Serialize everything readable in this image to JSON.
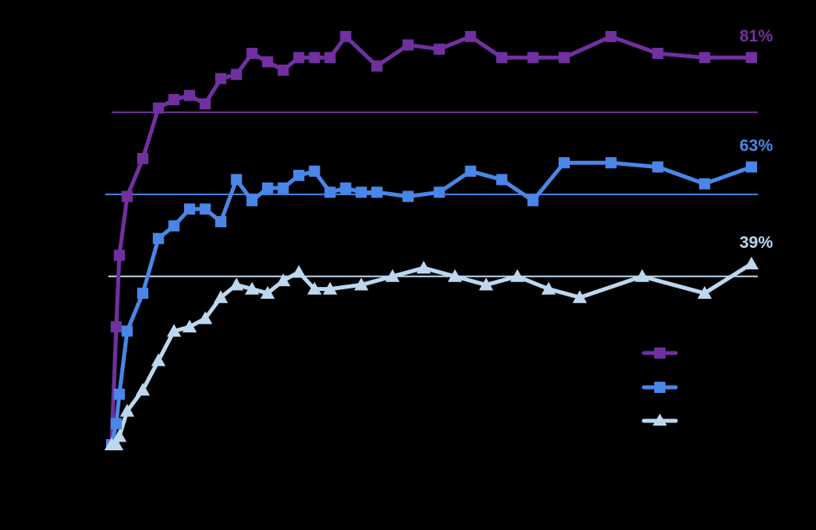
{
  "chart_data": {
    "type": "line",
    "background": "#000000",
    "title": "",
    "xlabel": "",
    "ylabel": "",
    "grid": false,
    "legend_position": "right",
    "x": [
      0,
      0.3,
      0.5,
      1,
      2,
      3,
      4,
      5,
      6,
      7,
      8,
      9,
      10,
      11,
      12,
      13,
      14,
      15,
      16,
      17,
      19,
      21,
      23,
      25,
      27,
      29,
      32,
      35,
      38,
      41
    ],
    "xlim": [
      0,
      41
    ],
    "ylim": [
      0,
      100
    ],
    "series": [
      {
        "color": "#7030A0",
        "marker": "square",
        "reference_value": 79,
        "end_label": "81%",
        "x": [
          0,
          0.3,
          0.5,
          1,
          2,
          3,
          4,
          5,
          6,
          7,
          8,
          9,
          10,
          11,
          12,
          13,
          14,
          15,
          17,
          19,
          21,
          23,
          25,
          27,
          29,
          32,
          35,
          38,
          41
        ],
        "values": [
          0,
          28,
          45,
          59,
          68,
          80,
          82,
          83,
          81,
          87,
          88,
          93,
          91,
          89,
          92,
          92,
          92,
          97,
          90,
          95,
          94,
          97,
          92,
          92,
          92,
          97,
          93,
          92,
          92
        ]
      },
      {
        "color": "#4A86E8",
        "marker": "square",
        "reference_value": 59.5,
        "end_label": "63%",
        "x": [
          0,
          0.3,
          0.5,
          1,
          2,
          3,
          4,
          5,
          6,
          7,
          8,
          9,
          10,
          11,
          12,
          13,
          14,
          15,
          16,
          17,
          19,
          21,
          23,
          25,
          27,
          29,
          32,
          35,
          38,
          41
        ],
        "values": [
          0,
          5,
          12,
          27,
          36,
          49,
          52,
          56,
          56,
          53,
          63,
          58,
          61,
          61,
          64,
          65,
          60,
          61,
          60,
          60,
          59,
          60,
          65,
          63,
          58,
          67,
          67,
          66,
          62,
          66
        ]
      },
      {
        "color": "#BDD7EE",
        "marker": "triangle",
        "reference_value": 40,
        "end_label": "39%",
        "x": [
          0,
          0.3,
          0.5,
          1,
          2,
          3,
          4,
          5,
          6,
          7,
          8,
          9,
          10,
          11,
          12,
          13,
          14,
          16,
          18,
          20,
          22,
          24,
          26,
          28,
          30,
          34,
          38,
          41
        ],
        "values": [
          0,
          0,
          2,
          8,
          13,
          20,
          27,
          28,
          30,
          35,
          38,
          37,
          36,
          39,
          41,
          37,
          37,
          38,
          40,
          42,
          40,
          38,
          40,
          37,
          35,
          40,
          36,
          43
        ]
      }
    ]
  }
}
